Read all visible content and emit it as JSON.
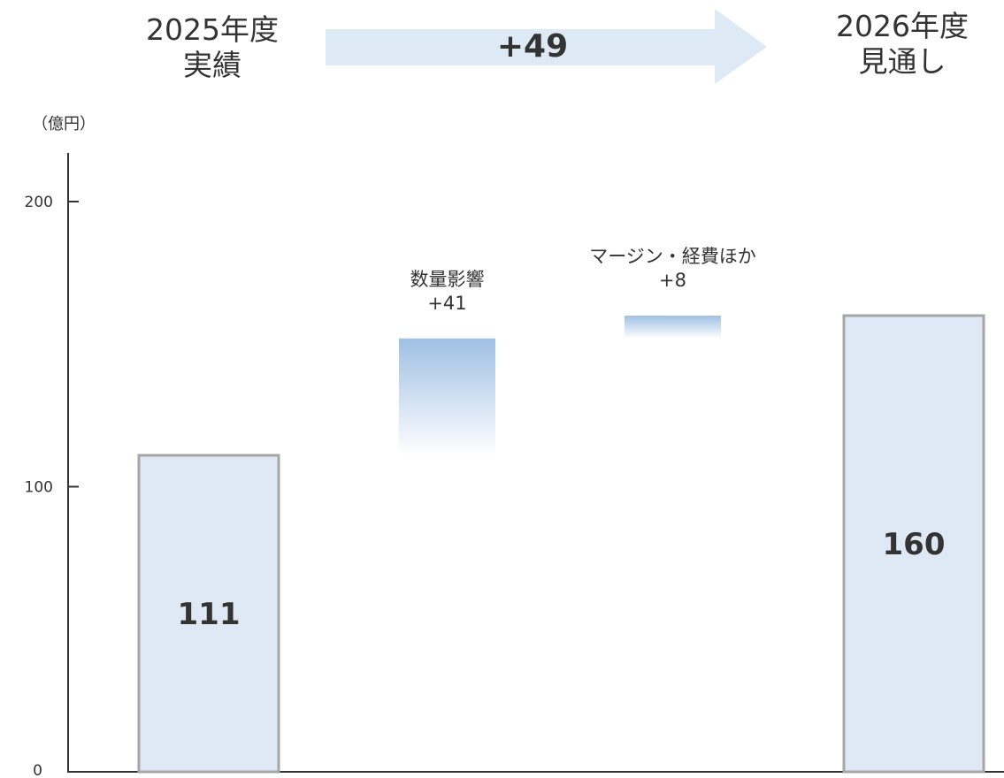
{
  "header": {
    "left": {
      "line1": "2025年度",
      "line2": "実績"
    },
    "right": {
      "line1": "2026年度",
      "line2": "見通し"
    },
    "arrow_label": "+49"
  },
  "unit_label": "（億円）",
  "colors": {
    "bar_fill": "#dfe9f6",
    "bar_border": "#a6a6a6",
    "delta_top": "#9fc0e4",
    "delta_bottom": "#ffffff",
    "arrow": "#dde9f5",
    "axis": "#333333",
    "text": "#333333"
  },
  "chart_data": {
    "type": "bar",
    "subtype": "waterfall",
    "ylim": [
      0,
      200
    ],
    "yticks": [
      0,
      100,
      200
    ],
    "ylabel": "（億円）",
    "items": [
      {
        "kind": "total",
        "label": "",
        "value": 111,
        "value_label": "111"
      },
      {
        "kind": "delta",
        "label": "数量影響",
        "value": 41,
        "value_label": "+41"
      },
      {
        "kind": "delta",
        "label": "マージン・経費ほか",
        "value": 8,
        "value_label": "+8"
      },
      {
        "kind": "total",
        "label": "",
        "value": 160,
        "value_label": "160"
      }
    ]
  }
}
